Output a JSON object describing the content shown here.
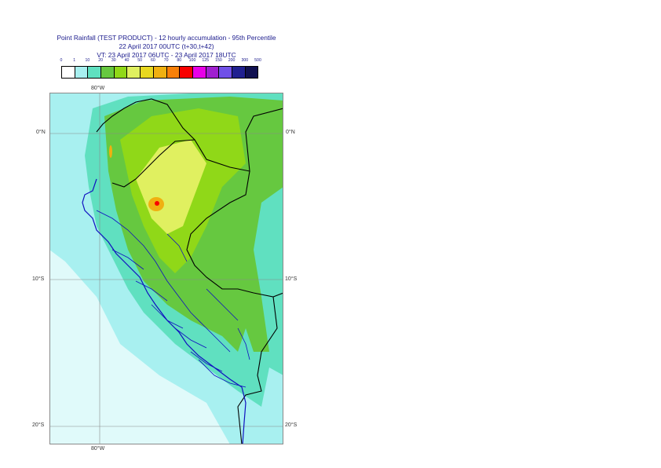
{
  "header": {
    "title_line1": "Point Rainfall (TEST PRODUCT) - 12 hourly accumulation - 95th Percentile",
    "title_line2": "22 April 2017 00UTC (t+30,t+42)",
    "title_line3": "VT: 23 April 2017 06UTC - 23 April 2017 18UTC"
  },
  "legend": {
    "ticks": [
      "0",
      "1",
      "10",
      "20",
      "30",
      "40",
      "50",
      "60",
      "70",
      "80",
      "100",
      "125",
      "150",
      "200",
      "300",
      "500"
    ],
    "colors": [
      "#ffffff",
      "#a8f0f0",
      "#60e0c0",
      "#66c840",
      "#90d818",
      "#e0f060",
      "#e8d820",
      "#f0b010",
      "#f88008",
      "#f80000",
      "#e800e8",
      "#a020d0",
      "#7050e8",
      "#202090",
      "#101050"
    ]
  },
  "map": {
    "lon_labels": {
      "top": "80°W",
      "bottom": "80°W"
    },
    "lat_labels": {
      "eq_left": "0°N",
      "eq_right": "0°N",
      "s10_left": "10°S",
      "s10_right": "10°S",
      "s20_left": "20°S",
      "s20_right": "20°S"
    },
    "colors": {
      "ocean": "#a8f0f0",
      "ocean_light": "#e0fafa",
      "coastal": "#60e0c0",
      "land_green": "#66c840",
      "land_yellowgreen": "#90d818",
      "yellow": "#e0f060",
      "orange": "#f0b010",
      "red": "#f80000",
      "border_black": "#000000",
      "border_blue": "#1010c0",
      "grid": "#8a8a8a"
    }
  }
}
